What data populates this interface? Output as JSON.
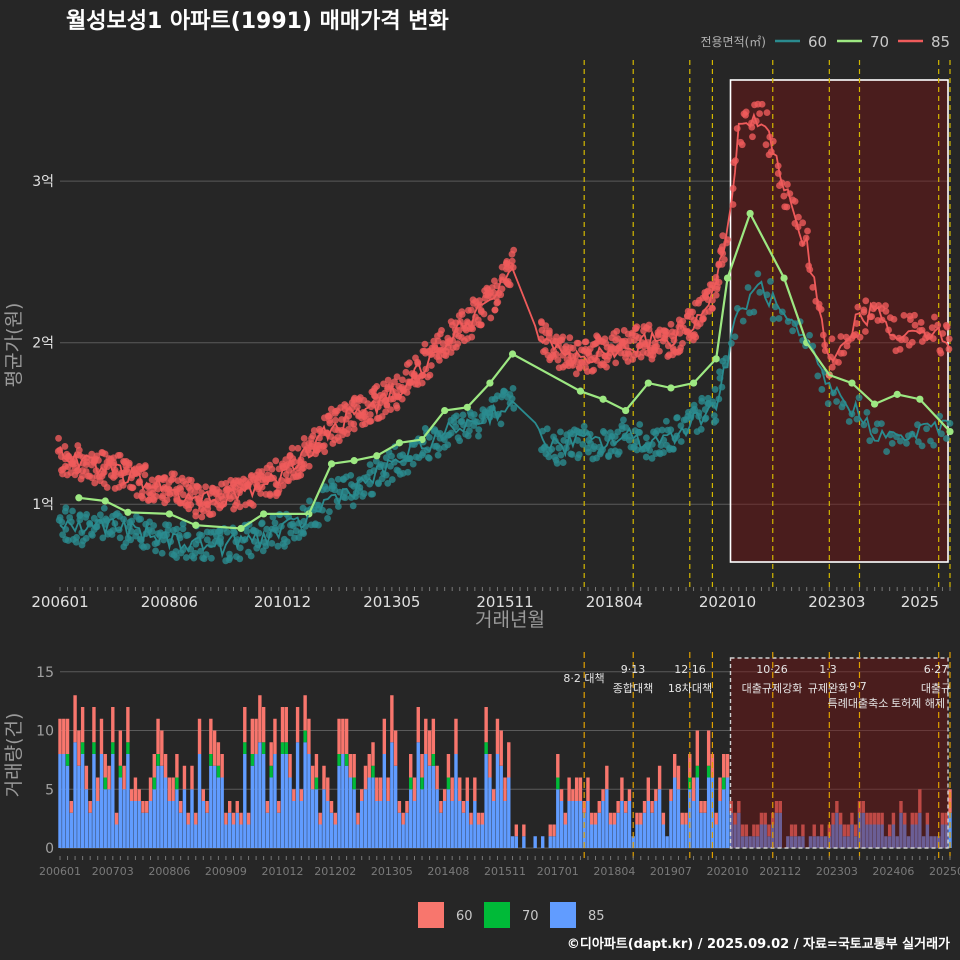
{
  "chart_data": [
    {
      "type": "line",
      "title": "월성보성1 아파트(1991) 매매가격 변화",
      "xlabel": "거래년월",
      "ylabel": "평균가(원)",
      "x_ticks": [
        "200601",
        "200806",
        "201012",
        "201305",
        "201511",
        "201804",
        "202010",
        "202303",
        "2025"
      ],
      "y_ticks": [
        {
          "value": 1,
          "label": "1억"
        },
        {
          "value": 2,
          "label": "2억"
        },
        {
          "value": 3,
          "label": "3억"
        }
      ],
      "y_unit": "억원",
      "ylim": [
        0.5,
        3.75
      ],
      "xlim": [
        "2006-01",
        "2025-09"
      ],
      "legend": {
        "title": "전용면적(㎡)",
        "position": "top-right",
        "entries": [
          "60",
          "70",
          "85"
        ]
      },
      "highlight_range": [
        "2020-10",
        "2025-09"
      ],
      "policy_dates": [
        "2017-08",
        "2018-09",
        "2019-12",
        "2020-06",
        "2021-10",
        "2023-01",
        "2023-09",
        "2025-06",
        "2025-09"
      ],
      "series": [
        {
          "name": "60",
          "color": "#2a8b8f",
          "points": [
            [
              "2006-01",
              0.88
            ],
            [
              "2006-07",
              0.85
            ],
            [
              "2007-01",
              0.88
            ],
            [
              "2007-07",
              0.84
            ],
            [
              "2008-01",
              0.8
            ],
            [
              "2008-07",
              0.78
            ],
            [
              "2009-01",
              0.76
            ],
            [
              "2009-07",
              0.74
            ],
            [
              "2010-01",
              0.77
            ],
            [
              "2010-07",
              0.8
            ],
            [
              "2011-01",
              0.84
            ],
            [
              "2011-07",
              0.92
            ],
            [
              "2012-01",
              1.04
            ],
            [
              "2012-07",
              1.1
            ],
            [
              "2013-01",
              1.18
            ],
            [
              "2013-07",
              1.28
            ],
            [
              "2014-01",
              1.36
            ],
            [
              "2014-07",
              1.44
            ],
            [
              "2015-01",
              1.5
            ],
            [
              "2015-07",
              1.56
            ],
            [
              "2016-01",
              1.62
            ],
            [
              "2016-07",
              1.45
            ],
            [
              "2017-01",
              1.35
            ],
            [
              "2017-07",
              1.4
            ],
            [
              "2018-01",
              1.38
            ],
            [
              "2018-07",
              1.42
            ],
            [
              "2019-01",
              1.38
            ],
            [
              "2019-07",
              1.42
            ],
            [
              "2020-01",
              1.52
            ],
            [
              "2020-07",
              1.62
            ],
            [
              "2020-10",
              1.9
            ],
            [
              "2021-01",
              2.2
            ],
            [
              "2021-07",
              2.35
            ],
            [
              "2022-01",
              2.15
            ],
            [
              "2022-07",
              1.98
            ],
            [
              "2023-01",
              1.72
            ],
            [
              "2023-07",
              1.6
            ],
            [
              "2024-01",
              1.45
            ],
            [
              "2024-07",
              1.4
            ],
            [
              "2025-01",
              1.45
            ],
            [
              "2025-09",
              1.5
            ]
          ]
        },
        {
          "name": "70",
          "color": "#9de882",
          "points": [
            [
              "2006-06",
              1.04
            ],
            [
              "2007-01",
              1.02
            ],
            [
              "2007-07",
              0.95
            ],
            [
              "2008-06",
              0.94
            ],
            [
              "2009-01",
              0.87
            ],
            [
              "2010-01",
              0.85
            ],
            [
              "2010-07",
              0.94
            ],
            [
              "2011-07",
              0.94
            ],
            [
              "2012-01",
              1.25
            ],
            [
              "2012-07",
              1.27
            ],
            [
              "2013-01",
              1.3
            ],
            [
              "2013-07",
              1.38
            ],
            [
              "2014-01",
              1.4
            ],
            [
              "2014-07",
              1.58
            ],
            [
              "2015-01",
              1.6
            ],
            [
              "2015-07",
              1.75
            ],
            [
              "2016-01",
              1.93
            ],
            [
              "2017-07",
              1.7
            ],
            [
              "2018-01",
              1.65
            ],
            [
              "2018-07",
              1.58
            ],
            [
              "2019-01",
              1.75
            ],
            [
              "2019-07",
              1.72
            ],
            [
              "2020-01",
              1.75
            ],
            [
              "2020-07",
              1.9
            ],
            [
              "2020-10",
              2.4
            ],
            [
              "2021-04",
              2.8
            ],
            [
              "2022-01",
              2.4
            ],
            [
              "2022-07",
              2.0
            ],
            [
              "2023-01",
              1.8
            ],
            [
              "2023-07",
              1.75
            ],
            [
              "2024-01",
              1.62
            ],
            [
              "2024-07",
              1.68
            ],
            [
              "2025-01",
              1.65
            ],
            [
              "2025-09",
              1.45
            ]
          ]
        },
        {
          "name": "85",
          "color": "#ef5b5b",
          "points": [
            [
              "2006-01",
              1.3
            ],
            [
              "2006-07",
              1.25
            ],
            [
              "2007-01",
              1.22
            ],
            [
              "2007-07",
              1.18
            ],
            [
              "2008-01",
              1.12
            ],
            [
              "2008-07",
              1.08
            ],
            [
              "2009-01",
              1.03
            ],
            [
              "2009-07",
              1.02
            ],
            [
              "2010-01",
              1.08
            ],
            [
              "2010-07",
              1.12
            ],
            [
              "2011-01",
              1.2
            ],
            [
              "2011-07",
              1.32
            ],
            [
              "2012-01",
              1.48
            ],
            [
              "2012-07",
              1.55
            ],
            [
              "2013-01",
              1.62
            ],
            [
              "2013-07",
              1.72
            ],
            [
              "2014-01",
              1.86
            ],
            [
              "2014-07",
              2.0
            ],
            [
              "2015-01",
              2.12
            ],
            [
              "2015-07",
              2.25
            ],
            [
              "2016-01",
              2.5
            ],
            [
              "2016-07",
              2.1
            ],
            [
              "2017-01",
              1.95
            ],
            [
              "2017-07",
              1.9
            ],
            [
              "2018-01",
              1.95
            ],
            [
              "2018-07",
              1.98
            ],
            [
              "2019-01",
              2.0
            ],
            [
              "2019-07",
              2.02
            ],
            [
              "2020-01",
              2.1
            ],
            [
              "2020-07",
              2.35
            ],
            [
              "2020-10",
              2.7
            ],
            [
              "2021-01",
              3.3
            ],
            [
              "2021-07",
              3.4
            ],
            [
              "2022-01",
              2.95
            ],
            [
              "2022-07",
              2.6
            ],
            [
              "2023-01",
              1.9
            ],
            [
              "2023-07",
              2.1
            ],
            [
              "2024-01",
              2.2
            ],
            [
              "2024-07",
              2.05
            ],
            [
              "2025-01",
              2.1
            ],
            [
              "2025-09",
              2.0
            ]
          ]
        }
      ]
    },
    {
      "type": "bar",
      "xlabel": "",
      "ylabel": "거래량(건)",
      "x_ticks": [
        "200601",
        "200703",
        "200806",
        "200909",
        "201012",
        "201202",
        "201305",
        "201408",
        "201511",
        "201701",
        "201804",
        "201907",
        "202010",
        "202112",
        "202303",
        "202406",
        "202509"
      ],
      "y_ticks": [
        0,
        5,
        10,
        15
      ],
      "ylim": [
        0,
        16
      ],
      "xlim": [
        "2006-01",
        "2025-09"
      ],
      "legend": {
        "position": "bottom",
        "entries": [
          {
            "name": "60",
            "color": "#f8766d"
          },
          {
            "name": "70",
            "color": "#00ba38"
          },
          {
            "name": "85",
            "color": "#619cff"
          }
        ]
      },
      "policy_events": [
        {
          "date": "2017-08",
          "label": "8·2 대책"
        },
        {
          "date": "2018-09",
          "label": "9·13 종합대책"
        },
        {
          "date": "2019-12",
          "label": "12·16 18차대책"
        },
        {
          "date": "2020-06",
          "label": ""
        },
        {
          "date": "2021-10",
          "label": "10·26 대출규제강화"
        },
        {
          "date": "2023-01",
          "label": "1·3 규제완화"
        },
        {
          "date": "2023-09",
          "label": "9·7 특례대출축소"
        },
        {
          "date": "2025-06",
          "label": "토허제 해제"
        },
        {
          "date": "2025-09",
          "label": "6·27 대출규"
        }
      ],
      "annotation_labels": {
        "e1": "8·2 대책",
        "e2a": "9·13",
        "e2b": "종합대책",
        "e3a": "12·16",
        "e3b": "18차대책",
        "e4a": "10·26",
        "e4b": "대출규제강화",
        "e5a": "1·3",
        "e5b": "규제완화",
        "e6a": "9·7",
        "e6b": "특례대출축소",
        "e7": "토허제 해제",
        "e8a": "6·27",
        "e8b": "대출규"
      },
      "highlight_range": [
        "2020-10",
        "2025-09"
      ],
      "yearly_volume": [
        {
          "year": 2006,
          "v60": 2.0,
          "v70": 0.5,
          "v85": 5.0
        },
        {
          "year": 2007,
          "v60": 1.8,
          "v70": 0.5,
          "v85": 4.5
        },
        {
          "year": 2008,
          "v60": 1.7,
          "v70": 0.4,
          "v85": 4.0
        },
        {
          "year": 2009,
          "v60": 2.2,
          "v70": 0.6,
          "v85": 5.5
        },
        {
          "year": 2010,
          "v60": 2.0,
          "v70": 0.5,
          "v85": 5.0
        },
        {
          "year": 2011,
          "v60": 1.8,
          "v70": 0.5,
          "v85": 4.8
        },
        {
          "year": 2012,
          "v60": 1.9,
          "v70": 0.6,
          "v85": 5.0
        },
        {
          "year": 2013,
          "v60": 2.0,
          "v70": 0.6,
          "v85": 5.2
        },
        {
          "year": 2014,
          "v60": 1.8,
          "v70": 0.5,
          "v85": 4.6
        },
        {
          "year": 2015,
          "v60": 1.7,
          "v70": 0.5,
          "v85": 4.3
        },
        {
          "year": 2016,
          "v60": 0.4,
          "v70": 0.1,
          "v85": 0.5
        },
        {
          "year": 2017,
          "v60": 1.0,
          "v70": 0.3,
          "v85": 2.8
        },
        {
          "year": 2018,
          "v60": 1.0,
          "v70": 0.3,
          "v85": 2.6
        },
        {
          "year": 2019,
          "v60": 1.2,
          "v70": 0.3,
          "v85": 3.0
        },
        {
          "year": 2020,
          "v60": 1.6,
          "v70": 0.4,
          "v85": 3.8
        },
        {
          "year": 2021,
          "v60": 1.0,
          "v70": 0.3,
          "v85": 2.0
        },
        {
          "year": 2022,
          "v60": 0.4,
          "v70": 0.1,
          "v85": 0.8
        },
        {
          "year": 2023,
          "v60": 0.8,
          "v70": 0.2,
          "v85": 1.6
        },
        {
          "year": 2024,
          "v60": 0.8,
          "v70": 0.2,
          "v85": 1.7
        },
        {
          "year": 2025,
          "v60": 0.9,
          "v70": 0.2,
          "v85": 1.8
        }
      ]
    }
  ],
  "footer": {
    "credit": "©디아파트(dapt.kr) / 2025.09.02 / 자료=국토교통부 실거래가"
  }
}
